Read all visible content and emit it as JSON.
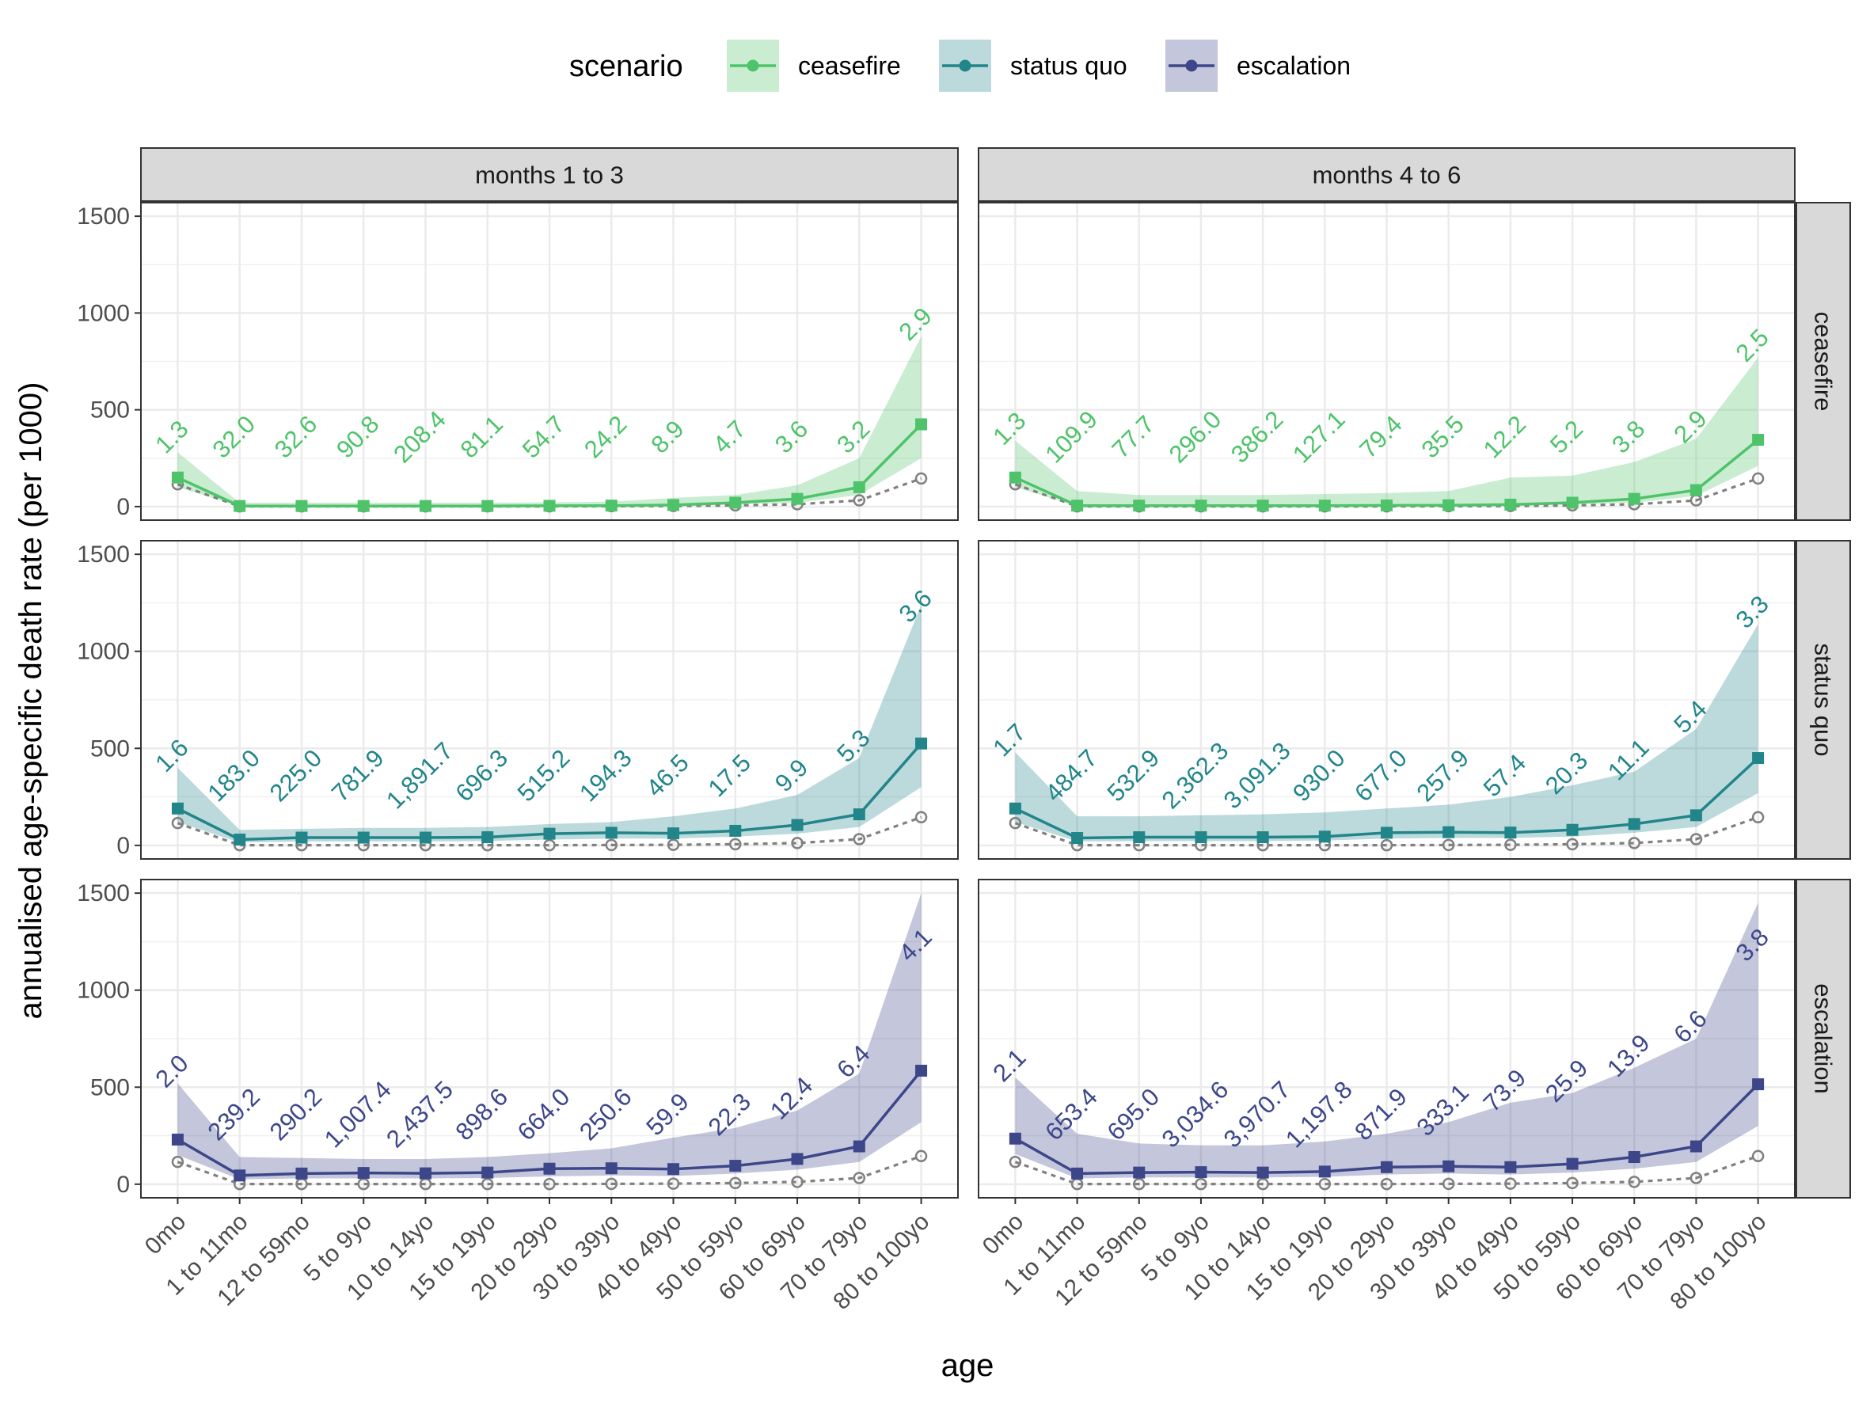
{
  "chart_data": {
    "type": "line",
    "ylabel": "annualised age-specific death rate (per 1000)",
    "xlabel": "age",
    "ylim": [
      -70,
      1570
    ],
    "yticks": [
      0,
      500,
      1000,
      1500
    ],
    "grid": true,
    "legend": {
      "title": "scenario",
      "position": "top",
      "items": [
        {
          "label": "ceasefire",
          "color": "#4ec36a"
        },
        {
          "label": "status quo",
          "color": "#21858a"
        },
        {
          "label": "escalation",
          "color": "#3d4689"
        }
      ]
    },
    "categories": [
      "0mo",
      "1 to 11mo",
      "12 to 59mo",
      "5 to 9yo",
      "10 to 14yo",
      "15 to 19yo",
      "20 to 29yo",
      "30 to 39yo",
      "40 to 49yo",
      "50 to 59yo",
      "60 to 69yo",
      "70 to 79yo",
      "80 to 100yo"
    ],
    "columns": [
      "months 1 to 3",
      "months 4 to 6"
    ],
    "rows": [
      "ceasefire",
      "status quo",
      "escalation"
    ],
    "baseline": {
      "name": "baseline (dashed)",
      "color": "#808080",
      "values": [
        115,
        1,
        1,
        1,
        1,
        1,
        1,
        2,
        3,
        6,
        12,
        32,
        145
      ]
    },
    "panels": [
      {
        "row": "ceasefire",
        "column": "months 1 to 3",
        "color": "#4ec36a",
        "values": [
          150,
          3,
          3,
          3,
          3,
          3,
          4,
          5,
          8,
          20,
          40,
          100,
          425
        ],
        "lower": [
          100,
          2,
          2,
          2,
          2,
          2,
          3,
          3,
          5,
          10,
          20,
          60,
          250
        ],
        "upper": [
          280,
          20,
          20,
          20,
          20,
          20,
          22,
          25,
          45,
          60,
          110,
          250,
          880
        ],
        "labels": [
          "1.3",
          "32.0",
          "32.6",
          "90.8",
          "208.4",
          "81.1",
          "54.7",
          "24.2",
          "8.9",
          "4.7",
          "3.6",
          "3.2",
          "2.9"
        ]
      },
      {
        "row": "ceasefire",
        "column": "months 4 to 6",
        "color": "#4ec36a",
        "values": [
          150,
          5,
          5,
          5,
          5,
          5,
          6,
          7,
          10,
          20,
          40,
          85,
          345
        ],
        "lower": [
          100,
          2,
          2,
          2,
          2,
          2,
          3,
          3,
          5,
          10,
          20,
          55,
          210
        ],
        "upper": [
          340,
          80,
          60,
          60,
          60,
          65,
          70,
          80,
          150,
          160,
          230,
          350,
          770
        ],
        "labels": [
          "1.3",
          "109.9",
          "77.7",
          "296.0",
          "386.2",
          "127.1",
          "79.4",
          "35.5",
          "12.2",
          "5.2",
          "3.8",
          "2.9",
          "2.5"
        ]
      },
      {
        "row": "status quo",
        "column": "months 1 to 3",
        "color": "#21858a",
        "values": [
          190,
          30,
          40,
          40,
          40,
          42,
          60,
          65,
          62,
          75,
          105,
          160,
          525
        ],
        "lower": [
          120,
          15,
          20,
          20,
          20,
          22,
          30,
          35,
          35,
          45,
          60,
          95,
          300
        ],
        "upper": [
          400,
          80,
          85,
          90,
          90,
          95,
          110,
          120,
          150,
          190,
          260,
          450,
          1240
        ],
        "labels": [
          "1.6",
          "183.0",
          "225.0",
          "781.9",
          "1,891.7",
          "696.3",
          "515.2",
          "194.3",
          "46.5",
          "17.5",
          "9.9",
          "5.3",
          "3.6"
        ]
      },
      {
        "row": "status quo",
        "column": "months 4 to 6",
        "color": "#21858a",
        "values": [
          190,
          38,
          42,
          42,
          42,
          45,
          65,
          68,
          66,
          80,
          110,
          155,
          450
        ],
        "lower": [
          120,
          20,
          22,
          22,
          22,
          25,
          35,
          38,
          38,
          45,
          65,
          95,
          270
        ],
        "upper": [
          480,
          150,
          150,
          155,
          160,
          170,
          190,
          210,
          250,
          310,
          380,
          600,
          1140
        ],
        "labels": [
          "1.7",
          "484.7",
          "532.9",
          "2,362.3",
          "3,091.3",
          "930.0",
          "677.0",
          "257.9",
          "57.4",
          "20.3",
          "11.1",
          "5.4",
          "3.3"
        ]
      },
      {
        "row": "escalation",
        "column": "months 1 to 3",
        "color": "#3d4689",
        "values": [
          230,
          45,
          55,
          58,
          56,
          60,
          80,
          82,
          78,
          95,
          130,
          195,
          585
        ],
        "lower": [
          150,
          25,
          30,
          30,
          30,
          32,
          40,
          45,
          42,
          55,
          75,
          115,
          320
        ],
        "upper": [
          520,
          140,
          135,
          130,
          130,
          140,
          160,
          185,
          240,
          290,
          380,
          570,
          1500
        ],
        "labels": [
          "2.0",
          "239.2",
          "290.2",
          "1,007.4",
          "2,437.5",
          "898.6",
          "664.0",
          "250.6",
          "59.9",
          "22.3",
          "12.4",
          "6.4",
          "4.1"
        ]
      },
      {
        "row": "escalation",
        "column": "months 4 to 6",
        "color": "#3d4689",
        "values": [
          235,
          55,
          60,
          62,
          60,
          65,
          88,
          92,
          88,
          105,
          140,
          195,
          515
        ],
        "lower": [
          155,
          30,
          35,
          35,
          35,
          38,
          50,
          55,
          50,
          60,
          80,
          115,
          300
        ],
        "upper": [
          550,
          260,
          210,
          200,
          200,
          220,
          260,
          320,
          420,
          470,
          600,
          750,
          1450
        ],
        "labels": [
          "2.1",
          "653.4",
          "695.0",
          "3,034.6",
          "3,970.7",
          "1,197.8",
          "871.9",
          "333.1",
          "73.9",
          "25.9",
          "13.9",
          "6.6",
          "3.8"
        ]
      }
    ]
  }
}
